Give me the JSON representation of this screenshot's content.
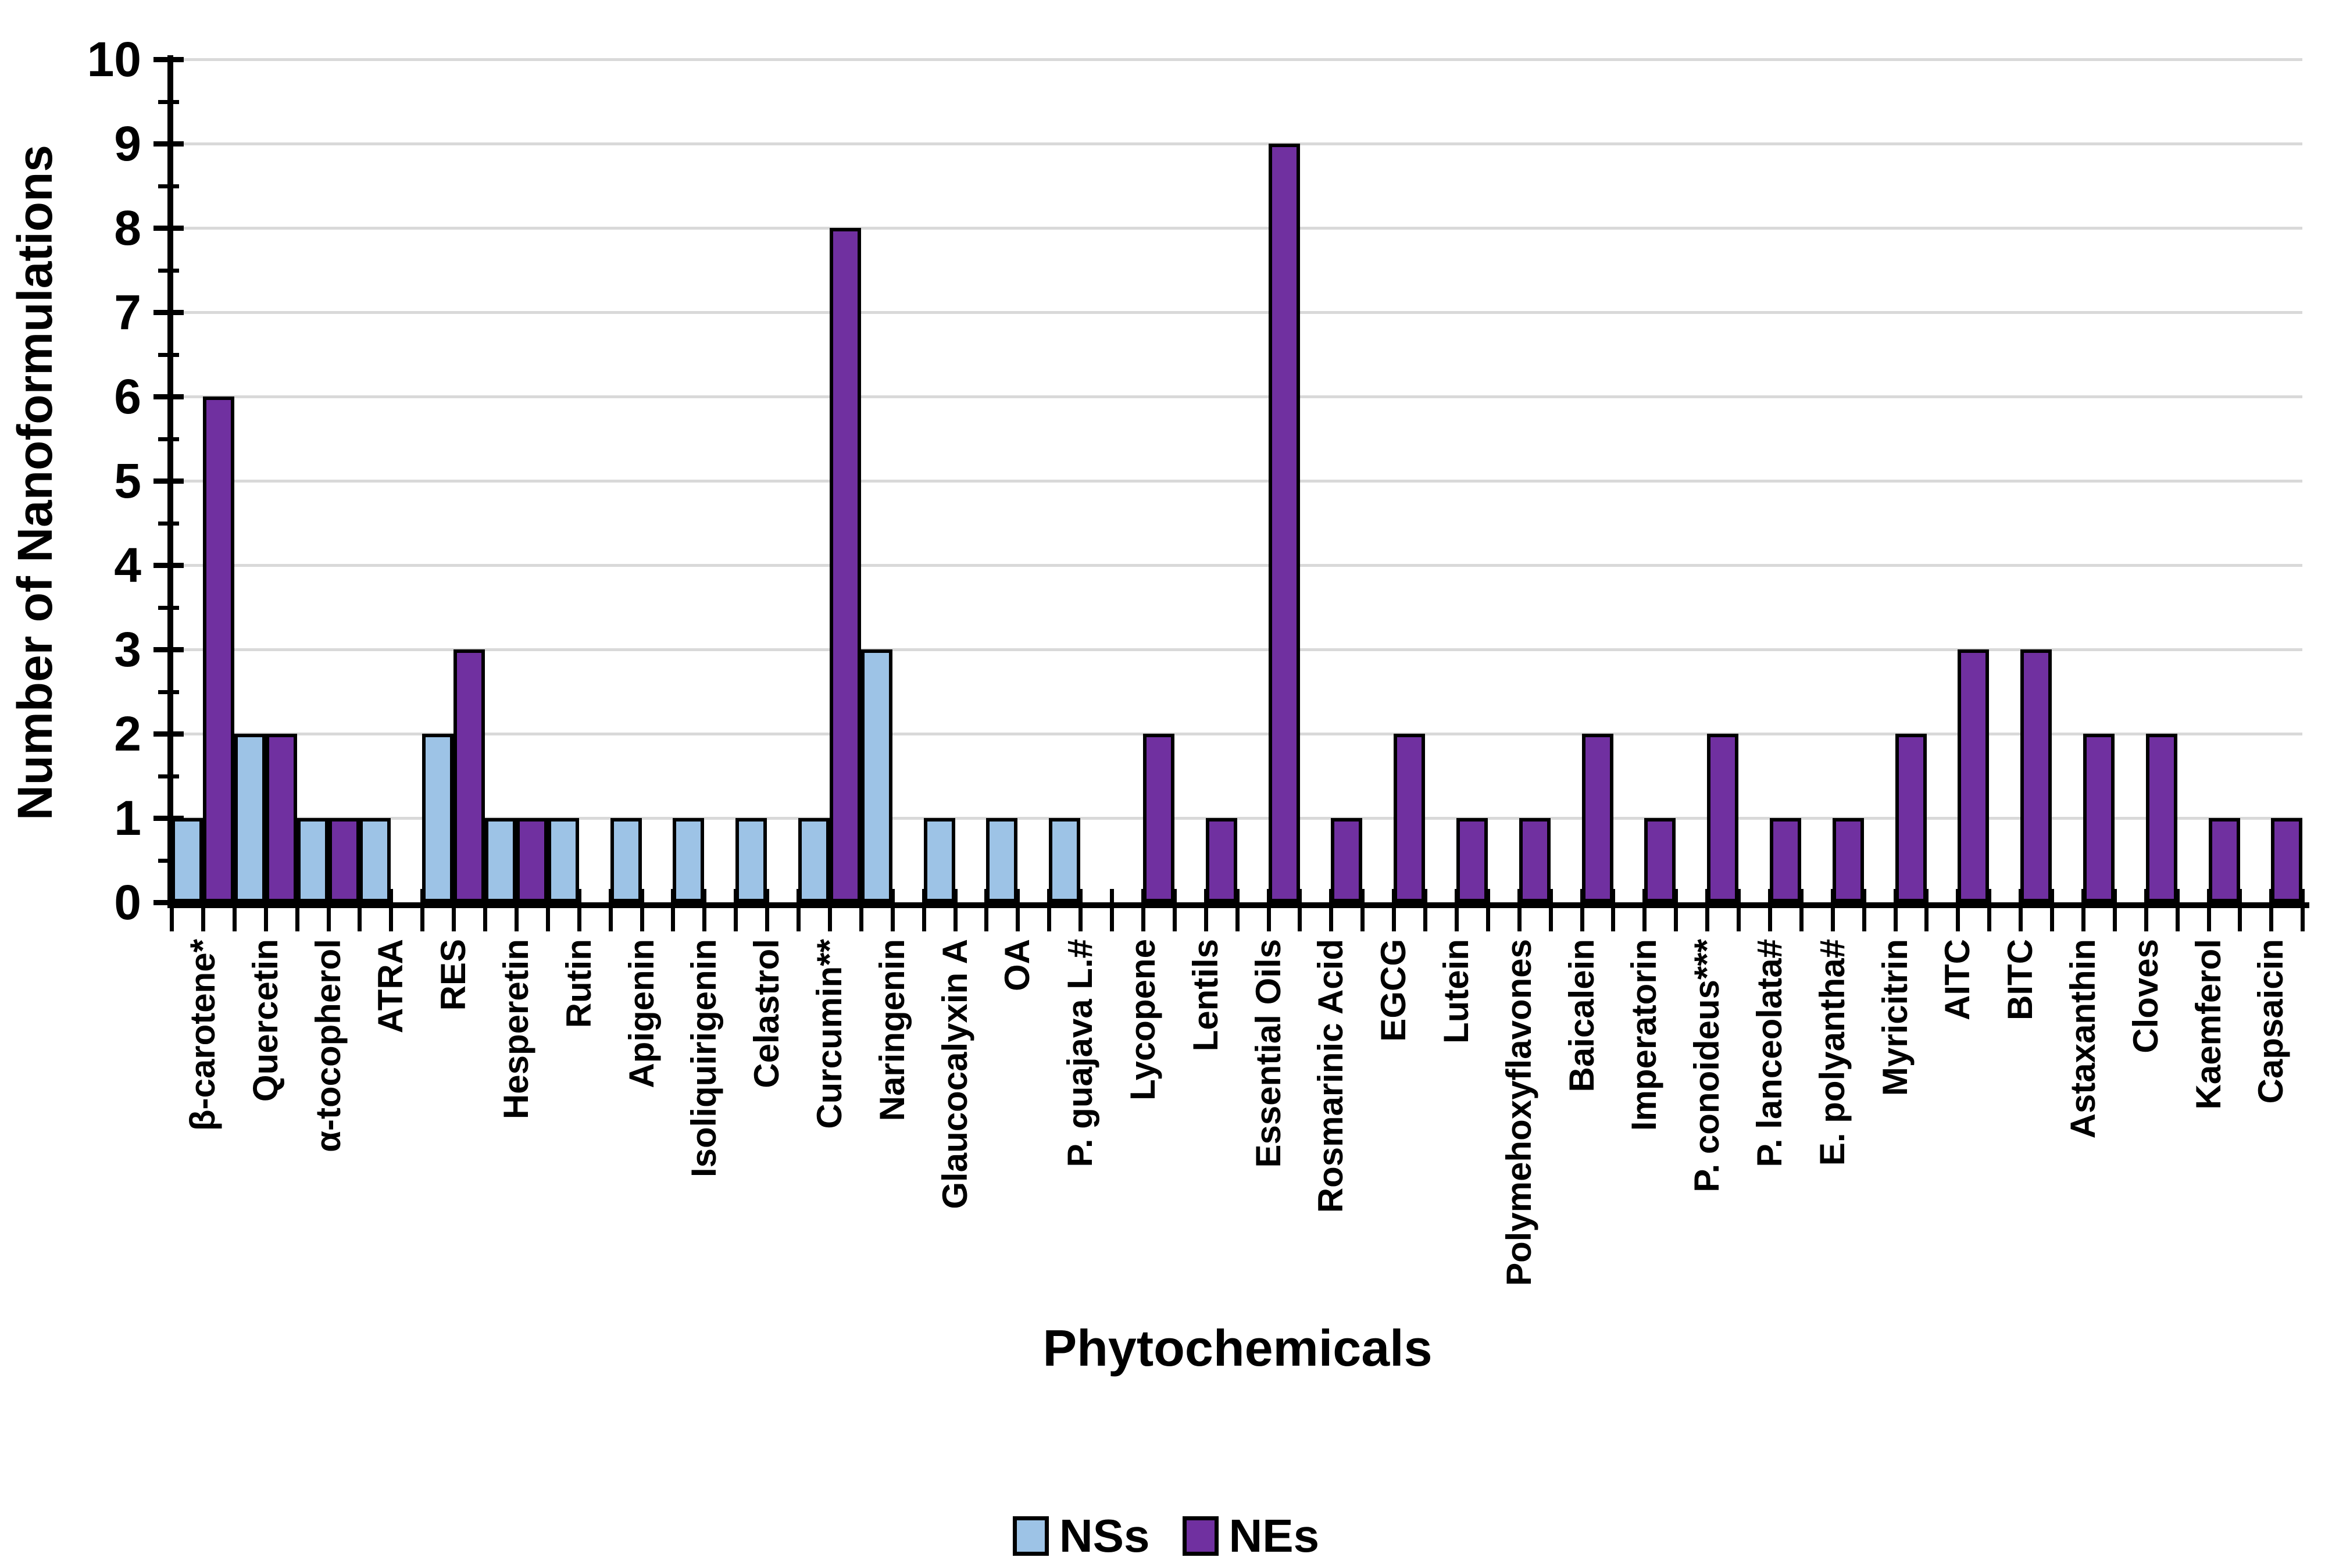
{
  "chart_data": {
    "type": "bar",
    "title": "",
    "xlabel": "Phytochemicals",
    "ylabel": "Number of Nanoformulations",
    "ylim": [
      0,
      10
    ],
    "ytick_step": 1,
    "yticks": [
      0,
      1,
      2,
      3,
      4,
      5,
      6,
      7,
      8,
      9,
      10
    ],
    "grid": true,
    "legend_position": "bottom",
    "categories": [
      "β-carotene*",
      "Quercetin",
      "α-tocopherol",
      "ATRA",
      "RES",
      "Hesperetin",
      "Rutin",
      "Apigenin",
      "Isoliquirigenin",
      "Celastrol",
      "Curcumin**",
      "Naringenin",
      "Glaucocalyxin A",
      "OA",
      "P. guajava L.#",
      "Lycopene",
      "Lentils",
      "Essential Oils",
      "Rosmarinic Acid",
      "EGCG",
      "Lutein",
      "Polymehoxyflavones",
      "Baicalein",
      "Imperatorin",
      "P. conoideus***",
      "P. lanceolata#",
      "E. polyantha#",
      "Myricitrin",
      "AITC",
      "BITC",
      "Astaxanthin",
      "Cloves",
      "Kaemferol",
      "Capsaicin"
    ],
    "series": [
      {
        "name": "NSs",
        "color": "#9DC3E6",
        "values": [
          1,
          2,
          1,
          1,
          2,
          1,
          1,
          1,
          1,
          1,
          1,
          3,
          1,
          1,
          1,
          0,
          0,
          0,
          0,
          0,
          0,
          0,
          0,
          0,
          0,
          0,
          0,
          0,
          0,
          0,
          0,
          0,
          0,
          0
        ]
      },
      {
        "name": "NEs",
        "color": "#7030A0",
        "values": [
          6,
          2,
          1,
          0,
          3,
          1,
          0,
          0,
          0,
          0,
          8,
          0,
          0,
          0,
          0,
          2,
          1,
          9,
          1,
          2,
          1,
          1,
          2,
          1,
          2,
          1,
          1,
          2,
          3,
          3,
          2,
          2,
          1,
          1
        ]
      }
    ]
  },
  "colors": {
    "bar_border": "#000000",
    "gridline": "#D9D9D9",
    "axis": "#000000",
    "text": "#000000",
    "background": "#FFFFFF"
  }
}
